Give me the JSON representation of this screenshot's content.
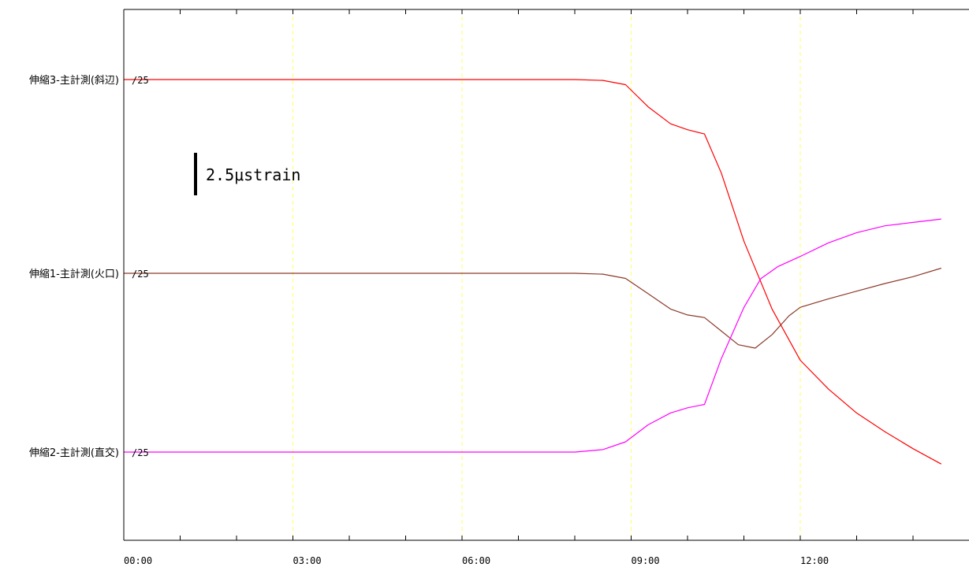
{
  "chart_data": {
    "type": "line",
    "title": "",
    "xlabel": "",
    "ylabel": "",
    "x_tick_labels": [
      "00:00",
      "03:00",
      "06:00",
      "09:00",
      "12:00"
    ],
    "x_range_hours": [
      0,
      14.5
    ],
    "grid": "vertical dashed yellow at labeled hours",
    "scale_bar": {
      "label": "2.5μstrain",
      "value": 2.5
    },
    "colors": {
      "frame": "#000000",
      "grid": "#ffff66"
    },
    "series": [
      {
        "name": "伸縮3-主計測(斜辺)",
        "division": "/25",
        "color": "#ff0000",
        "x": [
          0,
          3,
          6,
          8.0,
          8.5,
          8.9,
          9.3,
          9.7,
          10.0,
          10.3,
          10.6,
          11.0,
          11.5,
          12.0,
          12.5,
          13.0,
          13.5,
          14.0,
          14.5
        ],
        "y": [
          0,
          0,
          0,
          0,
          -0.05,
          -0.3,
          -1.6,
          -2.6,
          -2.95,
          -3.2,
          -5.5,
          -9.5,
          -13.5,
          -16.5,
          -18.2,
          -19.6,
          -20.7,
          -21.7,
          -22.6
        ]
      },
      {
        "name": "伸縮1-主計測(火口)",
        "division": "/25",
        "color": "#8b3a2a",
        "x": [
          0,
          3,
          6,
          8.0,
          8.5,
          8.9,
          9.3,
          9.7,
          10.0,
          10.3,
          10.6,
          10.9,
          11.2,
          11.5,
          11.8,
          12.0,
          12.5,
          13.0,
          13.5,
          14.0,
          14.5
        ],
        "y": [
          0,
          0,
          0,
          0,
          -0.05,
          -0.3,
          -1.2,
          -2.1,
          -2.45,
          -2.6,
          -3.4,
          -4.2,
          -4.4,
          -3.6,
          -2.5,
          -2.0,
          -1.5,
          -1.05,
          -0.6,
          -0.2,
          0.3
        ]
      },
      {
        "name": "伸縮2-主計測(直交)",
        "division": "/25",
        "color": "#ff00ff",
        "x": [
          0,
          3,
          6,
          8.0,
          8.5,
          8.9,
          9.3,
          9.7,
          10.0,
          10.3,
          10.6,
          11.0,
          11.3,
          11.6,
          12.0,
          12.5,
          13.0,
          13.5,
          14.0,
          14.5
        ],
        "y": [
          0,
          0,
          0,
          0,
          0.15,
          0.6,
          1.6,
          2.3,
          2.6,
          2.8,
          5.5,
          8.5,
          10.2,
          10.9,
          11.5,
          12.3,
          12.9,
          13.3,
          13.5,
          13.7
        ]
      }
    ]
  }
}
